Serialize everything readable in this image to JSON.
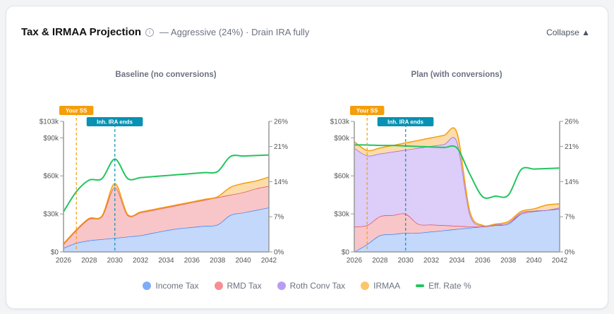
{
  "header": {
    "title": "Tax & IRMAA Projection",
    "info_icon": "info-circle-icon",
    "subtitle": "— Aggressive (24%) · Drain IRA fully",
    "collapse_label": "Collapse ▲"
  },
  "colors": {
    "income": "#3b82f6",
    "income_fill": "#c3d8fb",
    "rmd": "#e34b5a",
    "rmd_fill": "#f8c6c8",
    "roth": "#9a66e0",
    "roth_fill": "#dccdf9",
    "irmaa": "#f59e0b",
    "irmaa_fill": "#fbdcaa",
    "rate": "#22c55e",
    "ss_marker": "#f59e0b",
    "ira_marker": "#0891b2"
  },
  "legend": [
    {
      "label": "Income Tax",
      "color": "#7eacf9",
      "shape": "dot"
    },
    {
      "label": "RMD Tax",
      "color": "#f58f95",
      "shape": "dot"
    },
    {
      "label": "Roth Conv Tax",
      "color": "#b79cf7",
      "shape": "dot"
    },
    {
      "label": "IRMAA",
      "color": "#fbc66b",
      "shape": "dot"
    },
    {
      "label": "Eff. Rate %",
      "color": "#22c55e",
      "shape": "line"
    }
  ],
  "chart_data": [
    {
      "type": "area",
      "title": "Baseline (no conversions)",
      "x": [
        2026,
        2027,
        2028,
        2029,
        2030,
        2031,
        2032,
        2033,
        2034,
        2035,
        2036,
        2037,
        2038,
        2039,
        2040,
        2041,
        2042
      ],
      "x_ticks": [
        "2026",
        "2028",
        "2030",
        "2032",
        "2034",
        "2036",
        "2038",
        "2040",
        "2042"
      ],
      "y_left_ticks": [
        "$0",
        "$30k",
        "$60k",
        "$90k",
        "$103k"
      ],
      "y_left_tick_values": [
        0,
        30,
        60,
        90,
        103
      ],
      "y_left_range_k": [
        0,
        103
      ],
      "y_right_ticks": [
        "0%",
        "7%",
        "14%",
        "21%",
        "26%"
      ],
      "y_right_tick_values": [
        0,
        7,
        14,
        21,
        26
      ],
      "y_right_range": [
        0,
        26
      ],
      "stacked": true,
      "series": [
        {
          "name": "Income Tax",
          "key": "income",
          "values": [
            3,
            7,
            9,
            10,
            11,
            12,
            13,
            15,
            17,
            18.5,
            19.5,
            20.5,
            21.5,
            29,
            31,
            33,
            35
          ]
        },
        {
          "name": "RMD Tax",
          "key": "rmd",
          "values": [
            3,
            10,
            17,
            18,
            40,
            17,
            18,
            18,
            18,
            18.5,
            19.5,
            20.5,
            21.5,
            16,
            16,
            17,
            17
          ]
        },
        {
          "name": "Roth Conv Tax",
          "key": "roth",
          "values": [
            0,
            0,
            0,
            0,
            0,
            0,
            0,
            0,
            0,
            0,
            0,
            0,
            0,
            0,
            0,
            0,
            0
          ]
        },
        {
          "name": "IRMAA",
          "key": "irmaa",
          "values": [
            0.5,
            0.5,
            0.5,
            0.5,
            3,
            0.5,
            0.5,
            0.5,
            0.5,
            0.5,
            0.5,
            0.5,
            0.5,
            6,
            7,
            6,
            7
          ]
        }
      ],
      "rate": {
        "name": "Eff. Rate %",
        "values": [
          8,
          12,
          14.3,
          14.6,
          18.5,
          14.6,
          14.8,
          15,
          15.2,
          15.4,
          15.6,
          15.8,
          16,
          19,
          19.1,
          19.2,
          19.3
        ]
      },
      "markers": [
        {
          "label": "Your SS",
          "year": 2027,
          "color": "#f59e0b"
        },
        {
          "label": "Inh. IRA ends",
          "year": 2030,
          "color": "#0891b2"
        }
      ]
    },
    {
      "type": "area",
      "title": "Plan (with conversions)",
      "x": [
        2026,
        2027,
        2028,
        2029,
        2030,
        2031,
        2032,
        2033,
        2034,
        2035,
        2036,
        2037,
        2038,
        2039,
        2040,
        2041,
        2042
      ],
      "x_ticks": [
        "2026",
        "2028",
        "2030",
        "2032",
        "2034",
        "2036",
        "2038",
        "2040",
        "2042"
      ],
      "y_left_ticks": [
        "$0",
        "$30k",
        "$60k",
        "$90k",
        "$103k"
      ],
      "y_left_tick_values": [
        0,
        30,
        60,
        90,
        103
      ],
      "y_left_range_k": [
        0,
        103
      ],
      "y_right_ticks": [
        "0%",
        "7%",
        "14%",
        "21%",
        "26%"
      ],
      "y_right_tick_values": [
        0,
        7,
        14,
        21,
        26
      ],
      "y_right_range": [
        0,
        26
      ],
      "stacked": true,
      "series": [
        {
          "name": "Income Tax",
          "key": "income",
          "values": [
            0,
            6,
            13,
            14,
            15,
            15,
            16,
            17,
            18,
            19,
            20,
            21,
            22,
            30,
            32,
            33,
            34
          ]
        },
        {
          "name": "RMD Tax",
          "key": "rmd",
          "values": [
            20,
            15,
            15,
            15,
            15,
            7,
            5.5,
            4,
            2.5,
            1,
            0,
            0,
            1,
            0,
            0,
            0,
            0
          ]
        },
        {
          "name": "Roth Conv Tax",
          "key": "roth",
          "values": [
            62,
            55,
            49.5,
            50,
            50.5,
            60,
            62,
            64,
            66.5,
            10,
            0.5,
            0.5,
            0,
            1,
            0.5,
            0,
            1
          ]
        },
        {
          "name": "IRMAA",
          "key": "irmaa",
          "values": [
            5,
            4,
            4.5,
            5,
            5.5,
            6,
            6.5,
            7,
            7,
            2,
            0.5,
            0.5,
            1,
            1,
            1.5,
            4,
            3
          ]
        }
      ],
      "rate": {
        "name": "Eff. Rate %",
        "values": [
          21.3,
          21.3,
          21.2,
          21.2,
          21.1,
          21.0,
          20.9,
          20.8,
          20.7,
          15.5,
          11.0,
          11.1,
          11.3,
          16.4,
          16.5,
          16.6,
          16.7
        ]
      },
      "markers": [
        {
          "label": "Your SS",
          "year": 2027,
          "color": "#f59e0b"
        },
        {
          "label": "Inh. IRA ends",
          "year": 2030,
          "color": "#0891b2"
        }
      ]
    }
  ]
}
